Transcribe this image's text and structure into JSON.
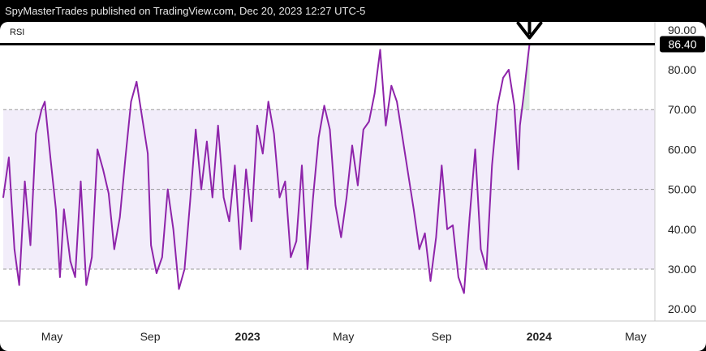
{
  "header": {
    "text": "SpyMasterTrades published on TradingView.com, Dec 20, 2023 12:27 UTC-5"
  },
  "chart_data": {
    "type": "line",
    "indicator_label": "RSI",
    "ylim": [
      17,
      92
    ],
    "y_ticks": [
      20,
      30,
      40,
      50,
      60,
      70,
      80,
      90
    ],
    "y_tick_labels": [
      "20.00",
      "30.00",
      "40.00",
      "50.00",
      "60.00",
      "70.00",
      "80.00",
      "90.00"
    ],
    "band": {
      "lower": 30,
      "upper": 70,
      "middle": 50
    },
    "x_range": [
      "2022-03-01",
      "2024-05-25"
    ],
    "x_ticks": [
      {
        "date": "2022-05-01",
        "label": "May",
        "bold": false
      },
      {
        "date": "2022-09-01",
        "label": "Sep",
        "bold": false
      },
      {
        "date": "2023-01-01",
        "label": "2023",
        "bold": true
      },
      {
        "date": "2023-05-01",
        "label": "May",
        "bold": false
      },
      {
        "date": "2023-09-01",
        "label": "Sep",
        "bold": false
      },
      {
        "date": "2024-01-01",
        "label": "2024",
        "bold": true
      },
      {
        "date": "2024-05-01",
        "label": "May",
        "bold": false
      }
    ],
    "current_value": 86.4,
    "current_label": "86.40",
    "horizontal_line_value": 86.4,
    "arrow_date": "2023-12-20",
    "colors": {
      "line": "#8e24aa",
      "band_fill": "#f2edfa",
      "reference_line": "#000000",
      "recent_fill": "#cfe8d5",
      "current_label_bg": "#000000"
    },
    "series": [
      {
        "values": [
          [
            "2022-03-01",
            48
          ],
          [
            "2022-03-08",
            58
          ],
          [
            "2022-03-15",
            35
          ],
          [
            "2022-03-21",
            26
          ],
          [
            "2022-03-28",
            52
          ],
          [
            "2022-04-04",
            36
          ],
          [
            "2022-04-11",
            64
          ],
          [
            "2022-04-18",
            70
          ],
          [
            "2022-04-22",
            72
          ],
          [
            "2022-04-29",
            58
          ],
          [
            "2022-05-06",
            45
          ],
          [
            "2022-05-11",
            28
          ],
          [
            "2022-05-16",
            45
          ],
          [
            "2022-05-24",
            32
          ],
          [
            "2022-05-30",
            28
          ],
          [
            "2022-06-06",
            52
          ],
          [
            "2022-06-13",
            26
          ],
          [
            "2022-06-20",
            33
          ],
          [
            "2022-06-27",
            60
          ],
          [
            "2022-07-04",
            55
          ],
          [
            "2022-07-11",
            49
          ],
          [
            "2022-07-18",
            35
          ],
          [
            "2022-07-25",
            43
          ],
          [
            "2022-08-01",
            58
          ],
          [
            "2022-08-08",
            72
          ],
          [
            "2022-08-15",
            77
          ],
          [
            "2022-08-22",
            68
          ],
          [
            "2022-08-29",
            59
          ],
          [
            "2022-09-02",
            36
          ],
          [
            "2022-09-09",
            29
          ],
          [
            "2022-09-16",
            33
          ],
          [
            "2022-09-23",
            50
          ],
          [
            "2022-09-30",
            40
          ],
          [
            "2022-10-07",
            25
          ],
          [
            "2022-10-14",
            30
          ],
          [
            "2022-10-21",
            47
          ],
          [
            "2022-10-28",
            65
          ],
          [
            "2022-11-04",
            50
          ],
          [
            "2022-11-11",
            62
          ],
          [
            "2022-11-18",
            48
          ],
          [
            "2022-11-25",
            66
          ],
          [
            "2022-12-02",
            48
          ],
          [
            "2022-12-09",
            42
          ],
          [
            "2022-12-16",
            56
          ],
          [
            "2022-12-23",
            35
          ],
          [
            "2022-12-30",
            55
          ],
          [
            "2023-01-06",
            42
          ],
          [
            "2023-01-13",
            66
          ],
          [
            "2023-01-20",
            59
          ],
          [
            "2023-01-27",
            72
          ],
          [
            "2023-02-03",
            64
          ],
          [
            "2023-02-10",
            48
          ],
          [
            "2023-02-17",
            52
          ],
          [
            "2023-02-24",
            33
          ],
          [
            "2023-03-03",
            37
          ],
          [
            "2023-03-10",
            56
          ],
          [
            "2023-03-17",
            30
          ],
          [
            "2023-03-24",
            48
          ],
          [
            "2023-03-31",
            63
          ],
          [
            "2023-04-07",
            71
          ],
          [
            "2023-04-14",
            65
          ],
          [
            "2023-04-21",
            46
          ],
          [
            "2023-04-28",
            38
          ],
          [
            "2023-05-05",
            48
          ],
          [
            "2023-05-12",
            61
          ],
          [
            "2023-05-19",
            51
          ],
          [
            "2023-05-26",
            65
          ],
          [
            "2023-06-02",
            67
          ],
          [
            "2023-06-09",
            74
          ],
          [
            "2023-06-16",
            85
          ],
          [
            "2023-06-23",
            66
          ],
          [
            "2023-06-30",
            76
          ],
          [
            "2023-07-07",
            72
          ],
          [
            "2023-07-14",
            63
          ],
          [
            "2023-07-21",
            54
          ],
          [
            "2023-07-28",
            45
          ],
          [
            "2023-08-04",
            35
          ],
          [
            "2023-08-11",
            39
          ],
          [
            "2023-08-18",
            27
          ],
          [
            "2023-08-25",
            38
          ],
          [
            "2023-09-01",
            56
          ],
          [
            "2023-09-08",
            40
          ],
          [
            "2023-09-15",
            41
          ],
          [
            "2023-09-22",
            28
          ],
          [
            "2023-09-29",
            24
          ],
          [
            "2023-10-06",
            43
          ],
          [
            "2023-10-13",
            60
          ],
          [
            "2023-10-20",
            35
          ],
          [
            "2023-10-27",
            30
          ],
          [
            "2023-11-03",
            56
          ],
          [
            "2023-11-10",
            71
          ],
          [
            "2023-11-17",
            78
          ],
          [
            "2023-11-24",
            80
          ],
          [
            "2023-12-01",
            71
          ],
          [
            "2023-12-06",
            55
          ],
          [
            "2023-12-08",
            66
          ],
          [
            "2023-12-13",
            74
          ],
          [
            "2023-12-18",
            83
          ],
          [
            "2023-12-20",
            86.4
          ]
        ]
      }
    ]
  }
}
